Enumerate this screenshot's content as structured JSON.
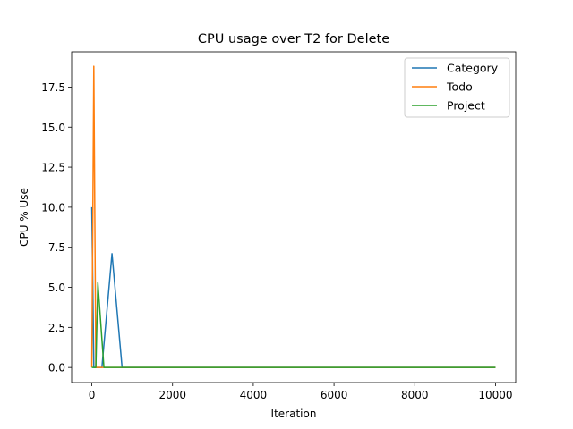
{
  "chart_data": {
    "type": "line",
    "title": "CPU usage over T2 for Delete",
    "xlabel": "Iteration",
    "ylabel": "CPU % Use",
    "xlim": [
      -500,
      10500
    ],
    "ylim": [
      -0.94,
      19.7
    ],
    "xticks": [
      0,
      2000,
      4000,
      6000,
      8000,
      10000
    ],
    "xtick_labels": [
      "0",
      "2000",
      "4000",
      "6000",
      "8000",
      "10000"
    ],
    "yticks": [
      0.0,
      2.5,
      5.0,
      7.5,
      10.0,
      12.5,
      15.0,
      17.5
    ],
    "ytick_labels": [
      "0.0",
      "2.5",
      "5.0",
      "7.5",
      "10.0",
      "12.5",
      "15.0",
      "17.5"
    ],
    "grid": false,
    "legend_position": "top-right",
    "series": [
      {
        "name": "Category",
        "color": "#1f77b4",
        "x": [
          0,
          50,
          250,
          500,
          750,
          1000,
          10000
        ],
        "y": [
          10.0,
          0.0,
          0.0,
          7.1,
          0.0,
          0.0,
          0.0
        ]
      },
      {
        "name": "Todo",
        "color": "#ff7f0e",
        "x": [
          0,
          50,
          100,
          250,
          500,
          10000
        ],
        "y": [
          0.0,
          18.8,
          0.0,
          0.0,
          0.0,
          0.0
        ]
      },
      {
        "name": "Project",
        "color": "#2ca02c",
        "x": [
          0,
          50,
          100,
          150,
          300,
          500,
          10000
        ],
        "y": [
          0.0,
          0.0,
          0.0,
          5.3,
          0.0,
          0.0,
          0.0
        ]
      }
    ]
  }
}
